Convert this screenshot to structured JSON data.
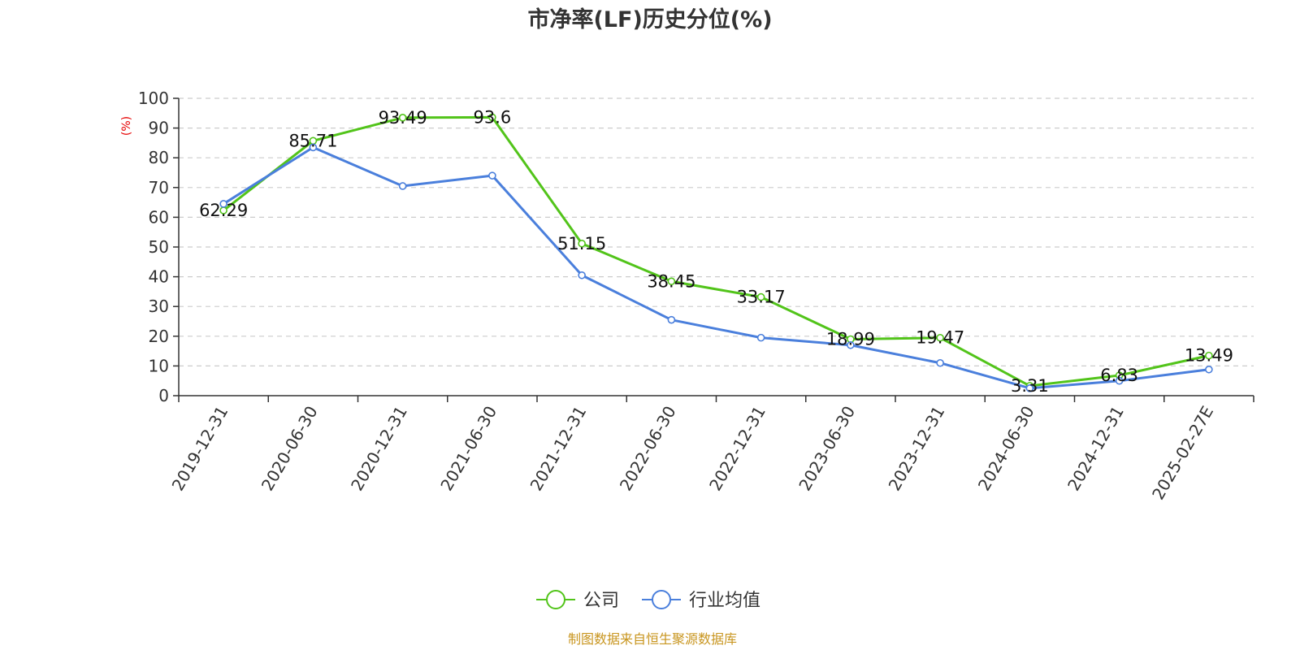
{
  "chart_data": {
    "type": "line",
    "title": "市净率(LF)历史分位(%)",
    "ylabel": "(%)",
    "xlabel": "",
    "ylim": [
      0,
      100
    ],
    "yticks": [
      0,
      10,
      20,
      30,
      40,
      50,
      60,
      70,
      80,
      90,
      100
    ],
    "grid": true,
    "legend_position": "bottom-center",
    "categories": [
      "2019-12-31",
      "2020-06-30",
      "2020-12-31",
      "2021-06-30",
      "2021-12-31",
      "2022-06-30",
      "2022-12-31",
      "2023-06-30",
      "2023-12-31",
      "2024-06-30",
      "2024-12-31",
      "2025-02-27E"
    ],
    "series": [
      {
        "name": "公司",
        "color": "#52c41a",
        "values": [
          62.29,
          85.71,
          93.49,
          93.6,
          51.15,
          38.45,
          33.17,
          18.99,
          19.47,
          3.31,
          6.83,
          13.49
        ],
        "data_labels": [
          "62.29",
          "85.71",
          "93.49",
          "93.6",
          "51.15",
          "38.45",
          "33.17",
          "18.99",
          "19.47",
          "3.31",
          "6.83",
          "13.49"
        ]
      },
      {
        "name": "行业均值",
        "color": "#4a7fdc",
        "values": [
          64.5,
          83.5,
          70.5,
          74,
          40.5,
          25.5,
          19.5,
          17,
          11,
          2.5,
          5,
          8.8
        ]
      }
    ],
    "source": "制图数据来自恒生聚源数据库"
  }
}
